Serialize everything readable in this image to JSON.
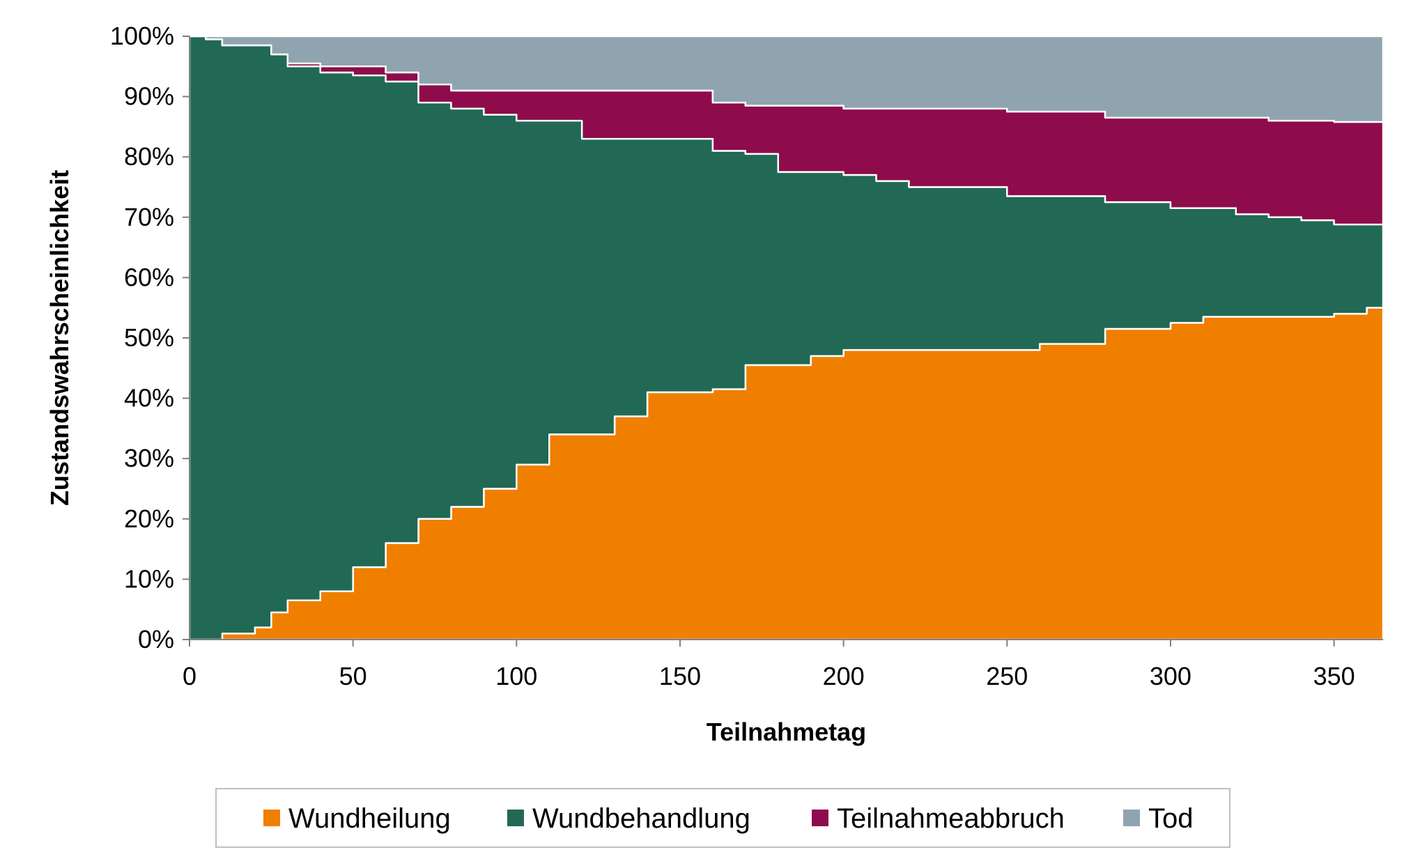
{
  "chart_data": {
    "type": "area",
    "stacked": true,
    "stacking": "percent-of-total",
    "xlabel": "Teilnahmetag",
    "ylabel": "Zustandswahrscheinlichkeit",
    "xlim": [
      0,
      365
    ],
    "ylim": [
      0,
      100
    ],
    "x_ticks": [
      0,
      50,
      100,
      150,
      200,
      250,
      300,
      350
    ],
    "y_ticks": [
      "0%",
      "10%",
      "20%",
      "30%",
      "40%",
      "50%",
      "60%",
      "70%",
      "80%",
      "90%",
      "100%"
    ],
    "grid": false,
    "legend_position": "bottom",
    "x": [
      0,
      5,
      10,
      20,
      25,
      30,
      40,
      50,
      60,
      70,
      80,
      90,
      100,
      110,
      120,
      130,
      140,
      150,
      160,
      170,
      180,
      190,
      200,
      210,
      220,
      240,
      250,
      260,
      270,
      280,
      290,
      300,
      310,
      320,
      330,
      340,
      350,
      360,
      365
    ],
    "series": [
      {
        "name": "Wundheilung",
        "color": "#F07F00",
        "values": [
          0,
          0,
          1,
          2,
          4.5,
          6.5,
          8,
          12,
          16,
          20,
          22,
          25,
          29,
          34,
          34,
          37,
          41,
          41,
          41.5,
          45.5,
          45.5,
          47,
          48,
          48,
          48,
          48,
          48,
          49,
          49,
          51.5,
          51.5,
          52.5,
          53.5,
          53.5,
          53.5,
          53.5,
          54,
          55,
          55
        ]
      },
      {
        "name": "Wundbehandlung",
        "color": "#216955",
        "values": [
          100,
          99.5,
          97.5,
          96.5,
          92.5,
          88.5,
          86,
          81.5,
          76.5,
          69,
          66,
          62,
          57,
          52,
          49,
          46,
          42,
          42,
          39.5,
          35,
          32,
          30.5,
          29,
          28,
          27,
          27,
          25.5,
          24.5,
          24.5,
          21,
          21,
          19,
          18,
          17,
          16.5,
          16,
          14.8,
          13.8,
          13.8
        ]
      },
      {
        "name": "Teilnahmeabbruch",
        "color": "#8E0C4B",
        "values": [
          0,
          0,
          0,
          0,
          0,
          0.5,
          1,
          1.5,
          1.5,
          3,
          3,
          4,
          5,
          5,
          8,
          8,
          8,
          8,
          8,
          8,
          11,
          11,
          11,
          12,
          13,
          13,
          14,
          14,
          14,
          14,
          14,
          15,
          15,
          16,
          16,
          16.5,
          17,
          17,
          17
        ]
      },
      {
        "name": "Tod",
        "color": "#8FA4AF",
        "values": [
          0,
          0.5,
          1.5,
          1.5,
          3,
          4.5,
          5,
          5,
          6,
          8,
          9,
          9,
          9,
          9,
          9,
          9,
          9,
          9,
          11,
          11.5,
          11.5,
          11.5,
          12,
          12,
          12,
          12,
          12.5,
          12.5,
          12.5,
          13.5,
          13.5,
          13.5,
          13.5,
          13.5,
          14,
          14,
          14.2,
          14.2,
          14.2
        ]
      }
    ]
  }
}
